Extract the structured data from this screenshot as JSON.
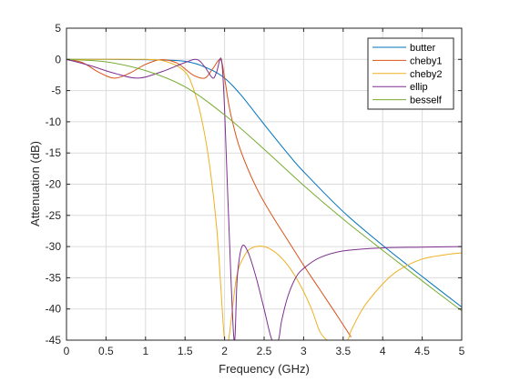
{
  "chart_data": {
    "type": "line",
    "title": "",
    "xlabel": "Frequency (GHz)",
    "ylabel": "Attenuation (dB)",
    "xlim": [
      0,
      5
    ],
    "ylim": [
      -45,
      5
    ],
    "xticks": [
      0,
      0.5,
      1,
      1.5,
      2,
      2.5,
      3,
      3.5,
      4,
      4.5,
      5
    ],
    "xtick_labels": [
      "0",
      "0.5",
      "1",
      "1.5",
      "2",
      "2.5",
      "3",
      "3.5",
      "4",
      "4.5",
      "5"
    ],
    "yticks": [
      5,
      0,
      -5,
      -10,
      -15,
      -20,
      -25,
      -30,
      -35,
      -40,
      -45
    ],
    "ytick_labels": [
      "5",
      "0",
      "-5",
      "-10",
      "-15",
      "-20",
      "-25",
      "-30",
      "-35",
      "-40",
      "-45"
    ],
    "grid": true,
    "legend_position": "top-right",
    "series": [
      {
        "name": "butter",
        "color": "#0072BD",
        "x": [
          0,
          0.5,
          1.0,
          1.5,
          1.8,
          2.0,
          2.2,
          2.5,
          2.8,
          3.0,
          3.5,
          4.0,
          4.5,
          5.0
        ],
        "y": [
          0,
          0,
          -0.05,
          -0.3,
          -1.5,
          -3.0,
          -5.6,
          -10.4,
          -15.1,
          -18.0,
          -24.4,
          -29.8,
          -34.8,
          -39.7
        ]
      },
      {
        "name": "cheby1",
        "color": "#D95319",
        "x": [
          0,
          0.2,
          0.4,
          0.6,
          0.8,
          1.0,
          1.2,
          1.4,
          1.6,
          1.75,
          1.85,
          1.95,
          2.0,
          2.05,
          2.1,
          2.2,
          2.4,
          2.6,
          2.8,
          3.0,
          3.2,
          3.4,
          3.6
        ],
        "y": [
          0,
          -0.5,
          -2.0,
          -3.0,
          -2.2,
          -0.8,
          -0.05,
          -0.6,
          -2.5,
          -3.0,
          -1.5,
          -0.02,
          -3.0,
          -7.0,
          -10.0,
          -14.5,
          -20.5,
          -25.0,
          -29.0,
          -33.0,
          -36.8,
          -40.6,
          -44.5
        ]
      },
      {
        "name": "cheby2",
        "color": "#EDB120",
        "x": [
          0,
          1.0,
          1.3,
          1.5,
          1.6,
          1.7,
          1.8,
          1.9,
          1.95,
          2.0,
          2.05,
          2.15,
          2.25,
          2.35,
          2.5,
          2.65,
          2.8,
          2.95,
          3.1,
          3.2,
          3.3,
          3.4,
          3.55,
          3.6,
          3.7,
          3.8,
          4.0,
          4.2,
          4.5,
          4.8,
          5.0
        ],
        "y": [
          0,
          0,
          -0.5,
          -2.0,
          -4.5,
          -9.0,
          -16.0,
          -27.0,
          -36.0,
          -45.0,
          -45.0,
          -35.0,
          -31.5,
          -30.2,
          -30.0,
          -31.0,
          -33.0,
          -36.0,
          -40.0,
          -43.5,
          -45.0,
          -45.0,
          -45.0,
          -43.5,
          -41.0,
          -39.0,
          -36.0,
          -33.8,
          -32.0,
          -31.3,
          -31.0
        ]
      },
      {
        "name": "ellip",
        "color": "#7E2F8E",
        "x": [
          0,
          0.3,
          0.6,
          0.9,
          1.2,
          1.5,
          1.65,
          1.75,
          1.85,
          1.9,
          1.96,
          2.0,
          2.05,
          2.12,
          2.16,
          2.22,
          2.3,
          2.4,
          2.5,
          2.6,
          2.68,
          2.72,
          2.8,
          2.9,
          3.0,
          3.2,
          3.5,
          4.0,
          4.5,
          5.0
        ],
        "y": [
          0,
          -1.0,
          -2.2,
          -3.0,
          -2.0,
          -0.5,
          -0.02,
          -1.2,
          -3.0,
          -2.0,
          0,
          -8.0,
          -25.0,
          -45.0,
          -35.0,
          -30.0,
          -31.0,
          -35.0,
          -40.0,
          -45.0,
          -45.0,
          -42.0,
          -38.0,
          -35.0,
          -33.5,
          -31.8,
          -30.7,
          -30.2,
          -30.1,
          -30.0
        ]
      },
      {
        "name": "besself",
        "color": "#77AC30",
        "x": [
          0,
          0.5,
          1.0,
          1.5,
          2.0,
          2.5,
          3.0,
          3.5,
          4.0,
          4.5,
          5.0
        ],
        "y": [
          0,
          -0.4,
          -1.8,
          -4.4,
          -8.9,
          -14.4,
          -20.2,
          -25.6,
          -30.6,
          -35.5,
          -40.3
        ]
      }
    ]
  }
}
